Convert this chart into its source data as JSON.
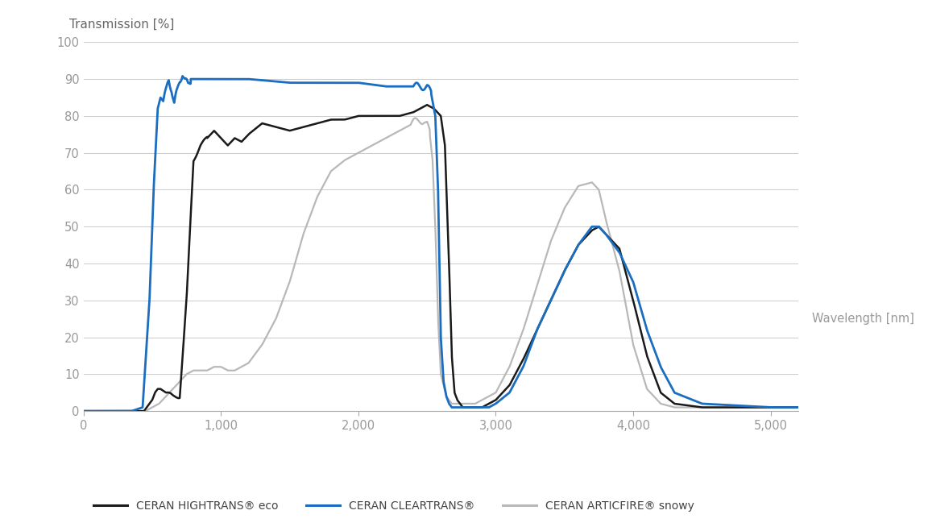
{
  "title": "Transmission [%]",
  "xlabel": "Wavelength [nm]",
  "xlim": [
    0,
    5200
  ],
  "ylim": [
    0,
    100
  ],
  "xticks": [
    0,
    1000,
    2000,
    3000,
    4000,
    5000
  ],
  "xticklabels": [
    "0",
    "1,000",
    "2,000",
    "3,000",
    "4,000",
    "5,000"
  ],
  "yticks": [
    0,
    10,
    20,
    30,
    40,
    50,
    60,
    70,
    80,
    90,
    100
  ],
  "color_black": "#1a1a1a",
  "color_blue": "#1b6dbf",
  "color_gray": "#b8b8b8",
  "color_grid": "#cccccc",
  "legend_labels": [
    "CERAN HIGHTRANS® eco",
    "CERAN CLEARTRANS®",
    "CERAN ARTICFIRE® snowy"
  ],
  "background": "#ffffff",
  "tick_color": "#999999",
  "axis_color": "#aaaaaa"
}
